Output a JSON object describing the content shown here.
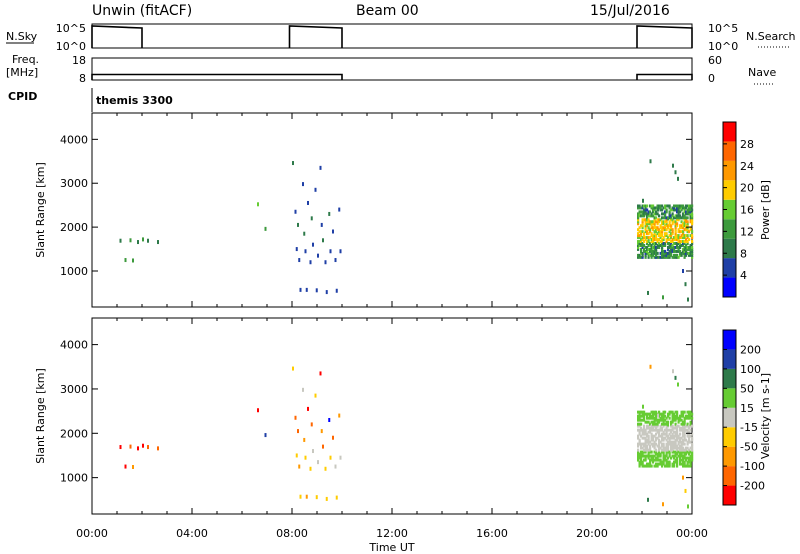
{
  "header": {
    "site": "Unwin (fitACF)",
    "beam": "Beam 00",
    "date": "15/Jul/2016"
  },
  "left_labels": {
    "nsky": "N.Sky",
    "freq": "Freq.",
    "freq_unit": "[MHz]",
    "cpid": "CPID"
  },
  "right_labels": {
    "nsearch": "N.Search",
    "nave": "Nave"
  },
  "cpid_text": "themis 3300",
  "x_axis_title": "Time UT",
  "colors": {
    "power": [
      "#0000ff",
      "#1f3fa6",
      "#2e7a4a",
      "#3c9a3c",
      "#66cc33",
      "#ffcc00",
      "#ff9900",
      "#ff6600",
      "#ff0000"
    ],
    "velocity": [
      "#ff0000",
      "#ff6600",
      "#ff9900",
      "#ffcc00",
      "#c8c8c0",
      "#66cc33",
      "#2e7a4a",
      "#1f3fa6",
      "#0000ff"
    ]
  },
  "chart_data": [
    {
      "type": "line",
      "name": "noise-sky-search",
      "ytick_labels_left": [
        "10^5",
        "10^0"
      ],
      "ytick_labels_right": [
        "10^5",
        "10^0"
      ],
      "segments": [
        {
          "x": [
            0.0,
            1.0,
            2.0
          ],
          "level": "high"
        },
        {
          "x": [
            7.9,
            9.0,
            10.0
          ],
          "level": "high"
        },
        {
          "x": [
            21.8,
            23.0,
            24.0
          ],
          "level": "high"
        }
      ]
    },
    {
      "type": "line",
      "name": "freq-nave",
      "ytick_labels_left": [
        "18",
        "8"
      ],
      "ytick_labels_right": [
        "60",
        "0"
      ],
      "segments": [
        {
          "x": [
            0.0,
            10.0
          ],
          "freq_mhz": 10.5
        },
        {
          "x": [
            21.8,
            24.0
          ],
          "freq_mhz": 10.5
        }
      ]
    },
    {
      "type": "scatter",
      "name": "power",
      "ylabel": "Slant Range [km]",
      "ylim": [
        180,
        4600
      ],
      "yticks": [
        "1000",
        "2000",
        "3000",
        "4000"
      ],
      "xlim": [
        0,
        24
      ],
      "xtick_labels": [
        "00:00",
        "04:00",
        "08:00",
        "12:00",
        "16:00",
        "20:00",
        "00:00"
      ],
      "colorbar": {
        "label": "Power [dB]",
        "ticks": [
          "4",
          "8",
          "12",
          "16",
          "20",
          "24",
          "28"
        ]
      },
      "points": [
        {
          "t": 1.1,
          "r": 1690,
          "v": 10
        },
        {
          "t": 1.3,
          "r": 1250,
          "v": 14
        },
        {
          "t": 1.5,
          "r": 1700,
          "v": 14
        },
        {
          "t": 1.6,
          "r": 1240,
          "v": 14
        },
        {
          "t": 1.8,
          "r": 1660,
          "v": 10
        },
        {
          "t": 2.0,
          "r": 1720,
          "v": 12
        },
        {
          "t": 2.2,
          "r": 1690,
          "v": 10
        },
        {
          "t": 2.6,
          "r": 1660,
          "v": 8
        },
        {
          "t": 6.6,
          "r": 2520,
          "v": 18
        },
        {
          "t": 6.9,
          "r": 1960,
          "v": 12
        },
        {
          "t": 8.0,
          "r": 3460,
          "v": 8
        },
        {
          "t": 8.1,
          "r": 2350,
          "v": 6
        },
        {
          "t": 8.15,
          "r": 1500,
          "v": 6
        },
        {
          "t": 8.2,
          "r": 2050,
          "v": 8
        },
        {
          "t": 8.25,
          "r": 1250,
          "v": 6
        },
        {
          "t": 8.3,
          "r": 570,
          "v": 6
        },
        {
          "t": 8.4,
          "r": 2980,
          "v": 6
        },
        {
          "t": 8.45,
          "r": 1850,
          "v": 8
        },
        {
          "t": 8.5,
          "r": 1450,
          "v": 6
        },
        {
          "t": 8.55,
          "r": 570,
          "v": 6
        },
        {
          "t": 8.6,
          "r": 2550,
          "v": 6
        },
        {
          "t": 8.7,
          "r": 1200,
          "v": 6
        },
        {
          "t": 8.75,
          "r": 2200,
          "v": 8
        },
        {
          "t": 8.8,
          "r": 1600,
          "v": 6
        },
        {
          "t": 8.9,
          "r": 2850,
          "v": 6
        },
        {
          "t": 8.95,
          "r": 560,
          "v": 6
        },
        {
          "t": 9.0,
          "r": 1350,
          "v": 6
        },
        {
          "t": 9.1,
          "r": 3350,
          "v": 6
        },
        {
          "t": 9.15,
          "r": 2050,
          "v": 6
        },
        {
          "t": 9.2,
          "r": 1700,
          "v": 8
        },
        {
          "t": 9.3,
          "r": 1200,
          "v": 6
        },
        {
          "t": 9.35,
          "r": 520,
          "v": 6
        },
        {
          "t": 9.45,
          "r": 2300,
          "v": 8
        },
        {
          "t": 9.5,
          "r": 1450,
          "v": 6
        },
        {
          "t": 9.6,
          "r": 1900,
          "v": 6
        },
        {
          "t": 9.7,
          "r": 1250,
          "v": 6
        },
        {
          "t": 9.75,
          "r": 550,
          "v": 6
        },
        {
          "t": 9.85,
          "r": 2400,
          "v": 6
        },
        {
          "t": 9.9,
          "r": 1450,
          "v": 6
        },
        {
          "t": 22.3,
          "r": 3500,
          "v": 8
        },
        {
          "t": 23.2,
          "r": 3400,
          "v": 8
        },
        {
          "t": 23.3,
          "r": 3250,
          "v": 10
        },
        {
          "t": 23.4,
          "r": 3100,
          "v": 8
        },
        {
          "t": 22.0,
          "r": 2600,
          "v": 8
        },
        {
          "t": 22.6,
          "r": 2400,
          "v": 10
        },
        {
          "t": 23.0,
          "r": 2200,
          "v": 12
        },
        {
          "t": 23.6,
          "r": 1000,
          "v": 6
        },
        {
          "t": 23.7,
          "r": 700,
          "v": 8
        },
        {
          "t": 22.2,
          "r": 500,
          "v": 10
        },
        {
          "t": 22.8,
          "r": 400,
          "v": 12
        },
        {
          "t": 23.8,
          "r": 350,
          "v": 10
        }
      ],
      "dense_patch": {
        "t": [
          21.8,
          24.0
        ],
        "r": [
          1300,
          2500
        ],
        "core_v": 22,
        "edge_v": 12
      }
    },
    {
      "type": "scatter",
      "name": "velocity",
      "ylabel": "Slant Range [km]",
      "ylim": [
        180,
        4600
      ],
      "yticks": [
        "1000",
        "2000",
        "3000",
        "4000"
      ],
      "xlim": [
        0,
        24
      ],
      "xtick_labels": [
        "00:00",
        "04:00",
        "08:00",
        "12:00",
        "16:00",
        "20:00",
        "00:00"
      ],
      "colorbar": {
        "label": "Velocity [m s-1]",
        "ticks": [
          "-200",
          "-100",
          "-50",
          "-15",
          "15",
          "50",
          "100",
          "200"
        ]
      },
      "points": [
        {
          "t": 1.1,
          "r": 1690,
          "v": -250
        },
        {
          "t": 1.3,
          "r": 1250,
          "v": -220
        },
        {
          "t": 1.5,
          "r": 1700,
          "v": -120
        },
        {
          "t": 1.6,
          "r": 1240,
          "v": -60
        },
        {
          "t": 1.8,
          "r": 1660,
          "v": -250
        },
        {
          "t": 2.0,
          "r": 1720,
          "v": -250
        },
        {
          "t": 2.2,
          "r": 1690,
          "v": -120
        },
        {
          "t": 2.6,
          "r": 1660,
          "v": -120
        },
        {
          "t": 6.6,
          "r": 2520,
          "v": -250
        },
        {
          "t": 6.9,
          "r": 1960,
          "v": 120
        },
        {
          "t": 8.0,
          "r": 3460,
          "v": -40
        },
        {
          "t": 8.1,
          "r": 2350,
          "v": -120
        },
        {
          "t": 8.15,
          "r": 1500,
          "v": -40
        },
        {
          "t": 8.2,
          "r": 2050,
          "v": -120
        },
        {
          "t": 8.25,
          "r": 1250,
          "v": -60
        },
        {
          "t": 8.3,
          "r": 570,
          "v": -40
        },
        {
          "t": 8.4,
          "r": 2980,
          "v": 10
        },
        {
          "t": 8.45,
          "r": 1850,
          "v": -60
        },
        {
          "t": 8.5,
          "r": 1450,
          "v": -40
        },
        {
          "t": 8.55,
          "r": 570,
          "v": -60
        },
        {
          "t": 8.6,
          "r": 2550,
          "v": -250
        },
        {
          "t": 8.7,
          "r": 1200,
          "v": -40
        },
        {
          "t": 8.75,
          "r": 2200,
          "v": -120
        },
        {
          "t": 8.8,
          "r": 1600,
          "v": 10
        },
        {
          "t": 8.9,
          "r": 2850,
          "v": -40
        },
        {
          "t": 8.95,
          "r": 560,
          "v": -40
        },
        {
          "t": 9.0,
          "r": 1350,
          "v": 10
        },
        {
          "t": 9.1,
          "r": 3350,
          "v": -250
        },
        {
          "t": 9.15,
          "r": 2050,
          "v": -60
        },
        {
          "t": 9.2,
          "r": 1700,
          "v": -120
        },
        {
          "t": 9.3,
          "r": 1200,
          "v": -40
        },
        {
          "t": 9.35,
          "r": 520,
          "v": -40
        },
        {
          "t": 9.45,
          "r": 2300,
          "v": 250
        },
        {
          "t": 9.5,
          "r": 1450,
          "v": -40
        },
        {
          "t": 9.6,
          "r": 1900,
          "v": -120
        },
        {
          "t": 9.7,
          "r": 1250,
          "v": 10
        },
        {
          "t": 9.75,
          "r": 550,
          "v": -40
        },
        {
          "t": 9.85,
          "r": 2400,
          "v": -60
        },
        {
          "t": 9.9,
          "r": 1450,
          "v": 10
        },
        {
          "t": 22.3,
          "r": 3500,
          "v": -60
        },
        {
          "t": 23.2,
          "r": 3400,
          "v": 10
        },
        {
          "t": 23.3,
          "r": 3250,
          "v": 60
        },
        {
          "t": 23.4,
          "r": 3100,
          "v": 30
        },
        {
          "t": 22.0,
          "r": 2600,
          "v": 30
        },
        {
          "t": 22.6,
          "r": 2400,
          "v": 10
        },
        {
          "t": 23.0,
          "r": 2200,
          "v": 30
        },
        {
          "t": 23.6,
          "r": 1000,
          "v": -60
        },
        {
          "t": 23.7,
          "r": 700,
          "v": -40
        },
        {
          "t": 22.2,
          "r": 500,
          "v": 60
        },
        {
          "t": 22.8,
          "r": 400,
          "v": -60
        },
        {
          "t": 23.8,
          "r": 350,
          "v": 30
        }
      ],
      "dense_patch": {
        "t": [
          21.8,
          24.0
        ],
        "r": [
          1250,
          2500
        ],
        "core_v": 0,
        "edge_v": 30
      }
    }
  ]
}
